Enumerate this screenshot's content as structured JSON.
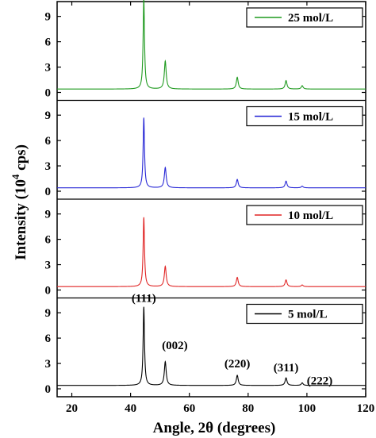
{
  "chart_data": {
    "type": "line",
    "xlabel": "Angle, 2θ (degrees)",
    "ylabel_main": "Intensity (10",
    "ylabel_sup": "4",
    "ylabel_tail": " cps)",
    "xlim": [
      15,
      120
    ],
    "x_ticks": [
      "20",
      "40",
      "60",
      "80",
      "100",
      "120"
    ],
    "ylim": [
      0,
      10
    ],
    "y_ticks": [
      "0",
      "3",
      "6",
      "9"
    ],
    "peak_positions": [
      44.5,
      51.8,
      76.3,
      92.9,
      98.4
    ],
    "series": [
      {
        "name": "25 mol/L",
        "color": "#1f9a1f",
        "baseline": 0.4,
        "peaks": [
          11.1,
          3.7,
          1.8,
          1.4,
          0.8
        ]
      },
      {
        "name": "15 mol/L",
        "color": "#2727d6",
        "baseline": 0.4,
        "peaks": [
          8.7,
          2.8,
          1.4,
          1.2,
          0.6
        ]
      },
      {
        "name": "10 mol/L",
        "color": "#e02424",
        "baseline": 0.4,
        "peaks": [
          8.6,
          2.8,
          1.5,
          1.2,
          0.6
        ]
      },
      {
        "name": "5 mol/L",
        "color": "#000000",
        "baseline": 0.4,
        "peaks": [
          9.7,
          3.2,
          1.6,
          1.3,
          0.7
        ]
      }
    ],
    "annotations": [
      "(111)",
      "(002)",
      "(220)",
      "(311)",
      "(222)"
    ]
  }
}
